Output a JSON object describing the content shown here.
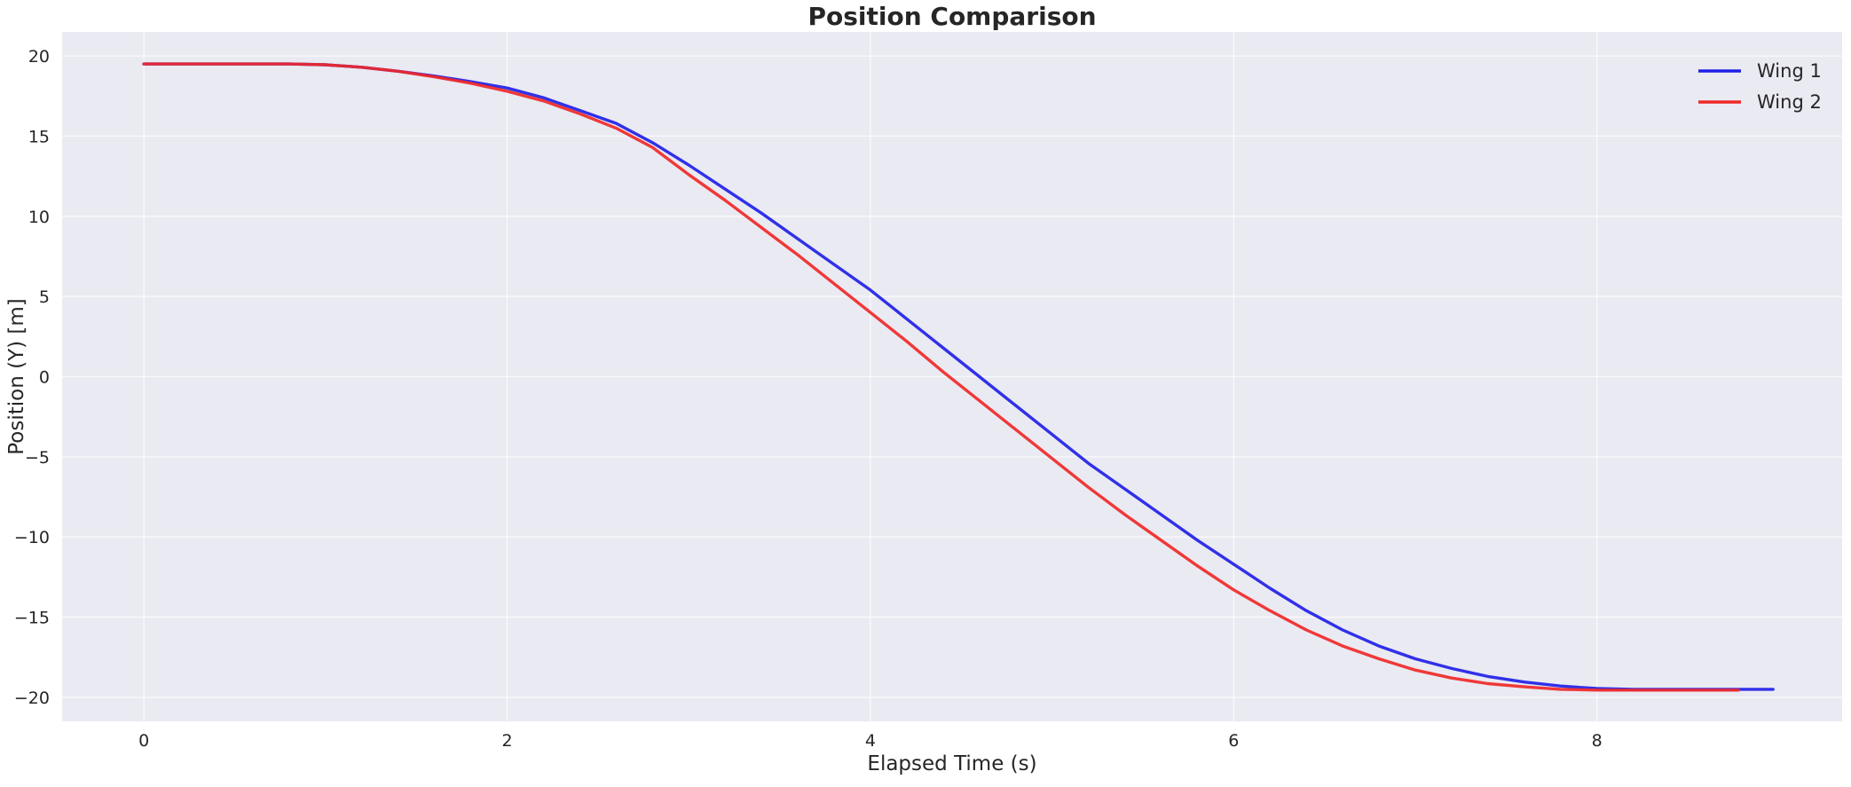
{
  "chart_data": {
    "type": "line",
    "title": "Position Comparison",
    "xlabel": "Elapsed Time (s)",
    "ylabel": "Position (Y) [m]",
    "xlim": [
      -0.45,
      9.35
    ],
    "ylim": [
      -21.5,
      21.5
    ],
    "xticks": [
      0,
      2,
      4,
      6,
      8
    ],
    "yticks": [
      20,
      15,
      10,
      5,
      0,
      -5,
      -10,
      -15,
      -20
    ],
    "xtick_labels": [
      "0",
      "2",
      "4",
      "6",
      "8"
    ],
    "ytick_labels": [
      "20",
      "15",
      "10",
      "5",
      "0",
      "−5",
      "−10",
      "−15",
      "−20"
    ],
    "grid": true,
    "background": "#eaeaf2",
    "legend_position": "top-right",
    "series": [
      {
        "name": "Wing 1",
        "color": "#1f1fe8",
        "x": [
          0,
          0.2,
          0.4,
          0.6,
          0.8,
          1.0,
          1.2,
          1.4,
          1.6,
          1.8,
          2.0,
          2.2,
          2.4,
          2.6,
          2.8,
          3.0,
          3.2,
          3.4,
          3.6,
          3.8,
          4.0,
          4.2,
          4.4,
          4.6,
          4.8,
          5.0,
          5.2,
          5.4,
          5.6,
          5.8,
          6.0,
          6.2,
          6.4,
          6.6,
          6.8,
          7.0,
          7.2,
          7.4,
          7.6,
          7.8,
          8.0,
          8.2,
          8.4,
          8.6,
          8.8,
          8.97
        ],
        "y": [
          19.5,
          19.5,
          19.5,
          19.5,
          19.5,
          19.45,
          19.3,
          19.05,
          18.75,
          18.4,
          18.0,
          17.4,
          16.6,
          15.8,
          14.6,
          13.2,
          11.7,
          10.2,
          8.6,
          7.0,
          5.4,
          3.6,
          1.8,
          0.0,
          -1.8,
          -3.6,
          -5.4,
          -7.0,
          -8.6,
          -10.2,
          -11.7,
          -13.2,
          -14.6,
          -15.8,
          -16.8,
          -17.6,
          -18.2,
          -18.7,
          -19.05,
          -19.3,
          -19.45,
          -19.5,
          -19.5,
          -19.5,
          -19.5,
          -19.5
        ]
      },
      {
        "name": "Wing 2",
        "color": "#f02828",
        "x": [
          0,
          0.2,
          0.4,
          0.6,
          0.8,
          1.0,
          1.2,
          1.4,
          1.6,
          1.8,
          2.0,
          2.2,
          2.4,
          2.6,
          2.8,
          3.0,
          3.2,
          3.4,
          3.6,
          3.8,
          4.0,
          4.2,
          4.4,
          4.6,
          4.8,
          5.0,
          5.2,
          5.4,
          5.6,
          5.8,
          6.0,
          6.2,
          6.4,
          6.6,
          6.8,
          7.0,
          7.2,
          7.4,
          7.6,
          7.8,
          8.0,
          8.2,
          8.4,
          8.6,
          8.78
        ],
        "y": [
          19.5,
          19.5,
          19.5,
          19.5,
          19.5,
          19.45,
          19.3,
          19.05,
          18.7,
          18.3,
          17.8,
          17.2,
          16.4,
          15.5,
          14.3,
          12.6,
          11.0,
          9.3,
          7.6,
          5.8,
          4.0,
          2.2,
          0.3,
          -1.5,
          -3.3,
          -5.1,
          -6.9,
          -8.6,
          -10.2,
          -11.8,
          -13.3,
          -14.6,
          -15.8,
          -16.8,
          -17.6,
          -18.3,
          -18.8,
          -19.15,
          -19.35,
          -19.5,
          -19.55,
          -19.55,
          -19.55,
          -19.55,
          -19.55
        ]
      }
    ]
  }
}
